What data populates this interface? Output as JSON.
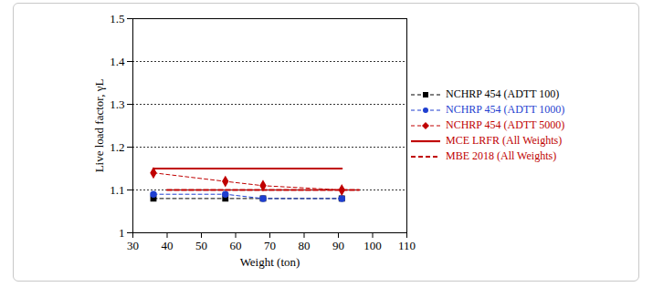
{
  "chart_data": {
    "type": "line",
    "x_label": "Weight (ton)",
    "y_label": "Live load factor, γL",
    "xlim": [
      30,
      110
    ],
    "xticks": [
      30,
      40,
      50,
      60,
      70,
      80,
      90,
      100,
      110
    ],
    "ylim": [
      1,
      1.5
    ],
    "yticks": [
      1,
      1.1,
      1.2,
      1.3,
      1.4,
      1.5
    ],
    "grid": true,
    "legend": "right",
    "series": [
      {
        "name": "NCHRP 454 (ADTT 100)",
        "color": "#000000",
        "marker": "square",
        "line_style": "dashed",
        "x": [
          36,
          57,
          68,
          91
        ],
        "values": [
          1.08,
          1.08,
          1.08,
          1.08
        ]
      },
      {
        "name": "NCHRP 454 (ADTT 1000)",
        "color": "#1f3fd0",
        "marker": "circle",
        "line_style": "dashed",
        "x": [
          36,
          57,
          68,
          91
        ],
        "values": [
          1.09,
          1.09,
          1.08,
          1.08
        ]
      },
      {
        "name": "NCHRP 454 (ADTT 5000)",
        "color": "#c00000",
        "marker": "diamond",
        "line_style": "dashed",
        "x": [
          36,
          57,
          68,
          91
        ],
        "values": [
          1.14,
          1.12,
          1.11,
          1.1
        ]
      },
      {
        "name": "MCE LRFR (All Weights)",
        "color": "#c00000",
        "line_style": "solid",
        "x": [
          36,
          91
        ],
        "values": [
          1.15,
          1.15
        ]
      },
      {
        "name": "MBE 2018 (All Weights)",
        "color": "#c00000",
        "line_style": "dashed",
        "x": [
          40,
          96
        ],
        "values": [
          1.1,
          1.1
        ]
      }
    ]
  }
}
